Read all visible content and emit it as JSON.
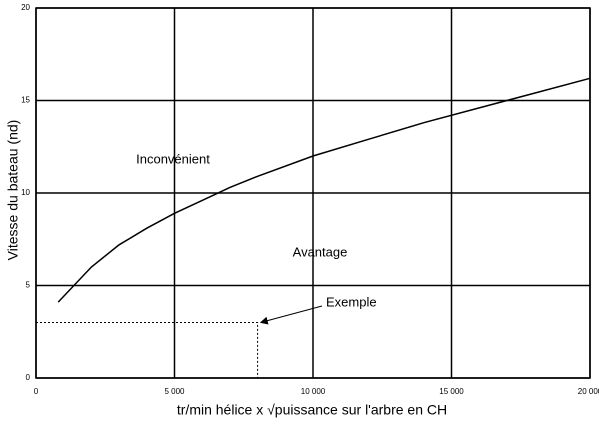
{
  "chart_data": {
    "type": "line",
    "x_label": "tr/min hélice x √puissance sur l'arbre en CH",
    "y_label": "Vitesse du bateau (nd)",
    "x": [
      800,
      2000,
      3000,
      4000,
      5000,
      6000,
      7000,
      8000,
      10000,
      12000,
      14000,
      16000,
      18000,
      20000
    ],
    "values": [
      4.1,
      6.0,
      7.2,
      8.1,
      8.9,
      9.6,
      10.3,
      10.9,
      12.0,
      12.9,
      13.8,
      14.6,
      15.4,
      16.2
    ],
    "color": "#000000",
    "xlim": [
      0,
      20000
    ],
    "xticks": [
      0,
      {
        "value": 5000,
        "label": "5 000"
      },
      {
        "value": 10000,
        "label": "10 000"
      },
      {
        "value": 15000,
        "label": "15 000"
      },
      {
        "value": 20000,
        "label": "20 000"
      }
    ],
    "ylim": [
      0,
      20
    ],
    "yticks": [
      0,
      5,
      10,
      15,
      20
    ],
    "grid": true,
    "regions": [
      "Inconvénient",
      "Avantage"
    ],
    "example": {
      "label": "Exemple",
      "x": 8000,
      "y": 3
    }
  }
}
